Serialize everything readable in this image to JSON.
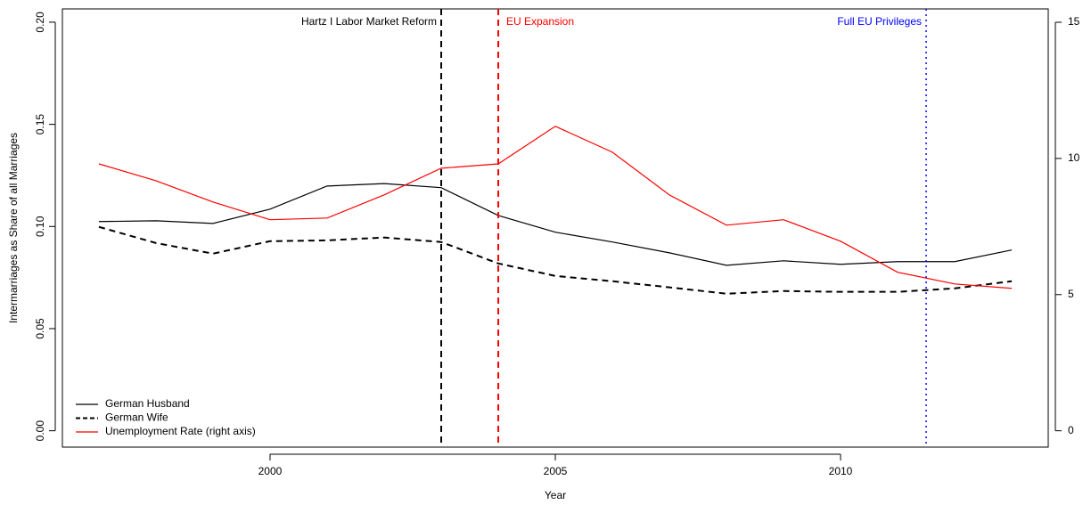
{
  "chart_data": {
    "type": "line",
    "x_label": "Year",
    "y_label": "Intermarriages as Share of all Marriages",
    "x": [
      1997,
      1998,
      1999,
      2000,
      2001,
      2002,
      2003,
      2004,
      2005,
      2006,
      2007,
      2008,
      2009,
      2010,
      2011,
      2012,
      2013
    ],
    "xlim": [
      1996.36,
      2013.64
    ],
    "xticks": [
      2000,
      2005,
      2010
    ],
    "ylim": [
      -0.008,
      0.2065
    ],
    "yticks": [
      {
        "value": 0,
        "label": "0.00"
      },
      {
        "value": 0.05,
        "label": "0.05"
      },
      {
        "value": 0.1,
        "label": "0.10"
      },
      {
        "value": 0.15,
        "label": "0.15"
      },
      {
        "value": 0.2,
        "label": "0.20"
      }
    ],
    "y2lim": [
      -0.6,
      15.49
    ],
    "y2ticks": [
      0,
      5,
      10,
      15
    ],
    "legend": "bottom-left",
    "series": [
      {
        "name": "German Husband",
        "color": "#000000",
        "dash": false,
        "values": [
          0.1024,
          0.1028,
          0.1015,
          0.1085,
          0.1198,
          0.121,
          0.119,
          0.1054,
          0.0972,
          0.0924,
          0.0871,
          0.081,
          0.0832,
          0.0815,
          0.0828,
          0.0828,
          0.0885
        ]
      },
      {
        "name": "German Wife",
        "color": "#000000",
        "dash": true,
        "values": [
          0.0998,
          0.0919,
          0.0867,
          0.0928,
          0.0932,
          0.0946,
          0.0924,
          0.0819,
          0.0758,
          0.0732,
          0.0702,
          0.0671,
          0.0684,
          0.068,
          0.068,
          0.0697,
          0.0732
        ]
      },
      {
        "name": "Unemployment Rate (right axis)",
        "color": "#ff0000",
        "dash": false,
        "axis": "y2",
        "values": [
          9.8,
          9.18,
          8.4,
          7.75,
          7.81,
          8.66,
          9.64,
          9.8,
          11.18,
          10.23,
          8.66,
          7.55,
          7.75,
          6.96,
          5.82,
          5.39,
          5.23
        ]
      }
    ],
    "annotations": [
      {
        "label": "Hartz I Labor Market Reform",
        "x": 2003,
        "color": "#000000",
        "style": "dashed",
        "label_side": "left"
      },
      {
        "label": "EU Expansion",
        "x": 2004,
        "color": "#ff0000",
        "style": "dashed",
        "label_side": "right"
      },
      {
        "label": "Full EU Privileges",
        "x": 2011.5,
        "color": "#0000ff",
        "style": "dotted",
        "label_side": "left"
      }
    ]
  }
}
